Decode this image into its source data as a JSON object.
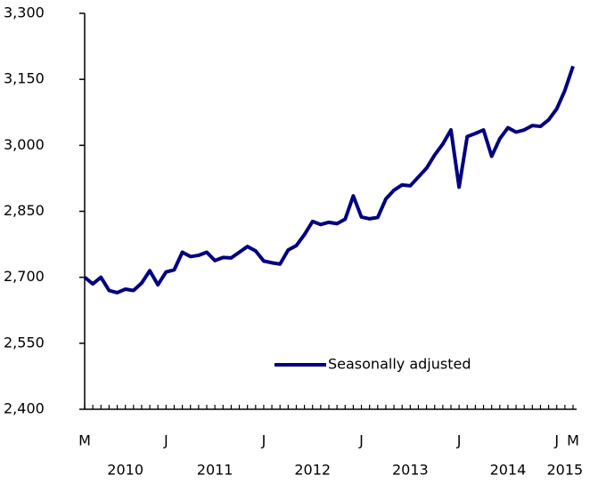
{
  "chart_data": {
    "type": "line",
    "categories": [
      "M",
      null,
      null,
      null,
      null,
      null,
      null,
      null,
      null,
      null,
      "J",
      null,
      null,
      null,
      null,
      null,
      null,
      null,
      null,
      null,
      null,
      null,
      "J",
      null,
      null,
      null,
      null,
      null,
      null,
      null,
      null,
      null,
      null,
      null,
      "J",
      null,
      null,
      null,
      null,
      null,
      null,
      null,
      null,
      null,
      null,
      null,
      "J",
      null,
      null,
      null,
      null,
      null,
      null,
      null,
      null,
      null,
      null,
      null,
      "J",
      null,
      "M"
    ],
    "year_labels": [
      "2010",
      "2011",
      "2012",
      "2013",
      "2014",
      "2015"
    ],
    "series": [
      {
        "name": "Seasonally adjusted",
        "color": "#000080",
        "values": [
          2700,
          2685,
          2700,
          2670,
          2665,
          2673,
          2670,
          2687,
          2715,
          2683,
          2712,
          2717,
          2757,
          2747,
          2750,
          2757,
          2738,
          2745,
          2744,
          2757,
          2770,
          2760,
          2737,
          2733,
          2730,
          2762,
          2772,
          2797,
          2827,
          2820,
          2825,
          2822,
          2832,
          2885,
          2837,
          2833,
          2836,
          2878,
          2898,
          2910,
          2908,
          2928,
          2948,
          2978,
          3003,
          3035,
          2905,
          3020,
          3027,
          3035,
          2975,
          3015,
          3040,
          3030,
          3035,
          3045,
          3043,
          3058,
          3083,
          3125,
          3180
        ]
      }
    ],
    "ylim": [
      2400,
      3300
    ],
    "yticks": [
      {
        "value": 2400,
        "label": "2,400"
      },
      {
        "value": 2550,
        "label": "2,550"
      },
      {
        "value": 2700,
        "label": "2,700"
      },
      {
        "value": 2850,
        "label": "2,850"
      },
      {
        "value": 3000,
        "label": "3,000"
      },
      {
        "value": 3150,
        "label": "3,150"
      },
      {
        "value": 3300,
        "label": "3,300"
      }
    ],
    "legend": "lower right"
  }
}
